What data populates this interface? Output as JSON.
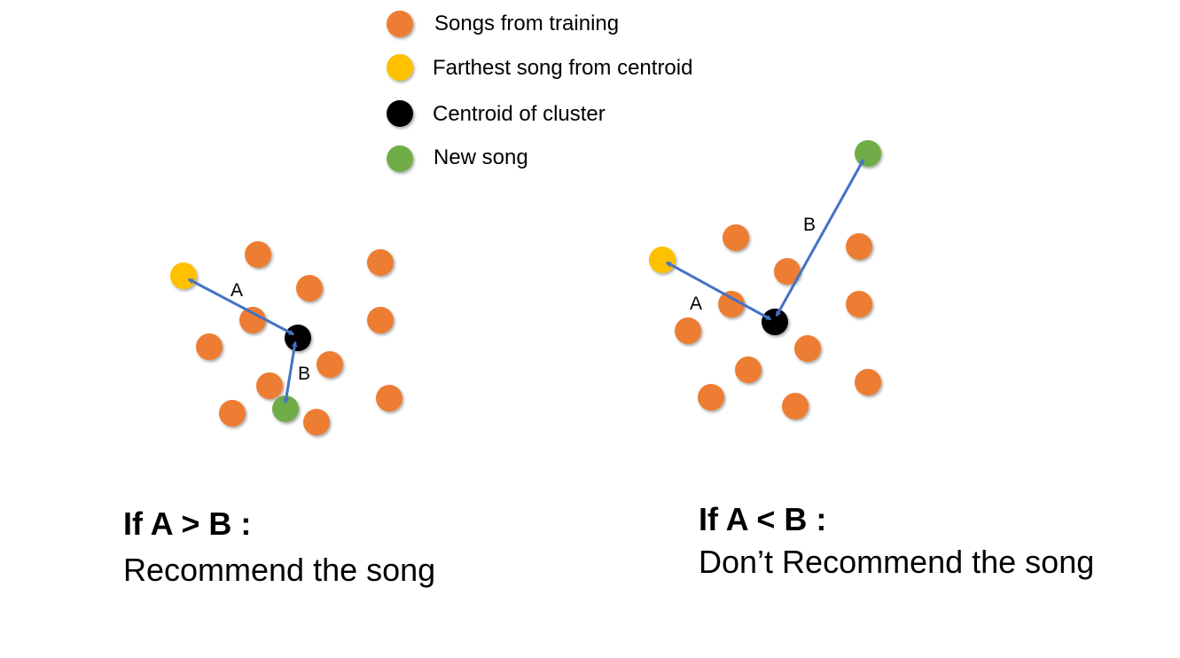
{
  "colors": {
    "training": "#ED7D31",
    "farthest": "#FFC000",
    "centroid": "#000000",
    "new_song": "#70AD47",
    "arrow": "#4472C4"
  },
  "legend": [
    {
      "key": "training",
      "label": "Songs from training"
    },
    {
      "key": "farthest",
      "label": "Farthest song from centroid"
    },
    {
      "key": "centroid",
      "label": "Centroid of cluster"
    },
    {
      "key": "new_song",
      "label": "New song"
    }
  ],
  "panels": [
    {
      "id": "left",
      "label_a": "A",
      "label_b": "B",
      "condition": "If A > B :",
      "verdict": "Recommend the song"
    },
    {
      "id": "right",
      "label_a": "A",
      "label_b": "B",
      "condition": "If A < B :",
      "verdict": "Don’t Recommend the song"
    }
  ]
}
